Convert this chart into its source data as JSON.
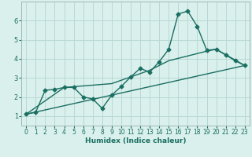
{
  "xlabel": "Humidex (Indice chaleur)",
  "bg_color": "#daf0ec",
  "line_color": "#1a6e62",
  "grid_color": "#b8d8d4",
  "xlim": [
    -0.5,
    23.5
  ],
  "ylim": [
    0.5,
    7.0
  ],
  "yticks": [
    1,
    2,
    3,
    4,
    5,
    6
  ],
  "xticks": [
    0,
    1,
    2,
    3,
    4,
    5,
    6,
    7,
    8,
    9,
    10,
    11,
    12,
    13,
    14,
    15,
    16,
    17,
    18,
    19,
    20,
    21,
    22,
    23
  ],
  "line1_x": [
    0,
    1,
    2,
    3,
    4,
    5,
    6,
    7,
    8,
    9,
    10,
    11,
    12,
    13,
    14,
    15,
    16,
    17,
    18,
    19,
    20,
    21,
    22,
    23
  ],
  "line1_y": [
    1.1,
    1.2,
    2.35,
    2.4,
    2.5,
    2.5,
    2.0,
    1.9,
    1.4,
    2.1,
    2.55,
    3.05,
    3.5,
    3.3,
    3.85,
    4.5,
    6.35,
    6.5,
    5.7,
    4.45,
    4.5,
    4.2,
    3.9,
    3.65
  ],
  "line2_x": [
    0,
    23
  ],
  "line2_y": [
    1.1,
    3.65
  ],
  "line3_x": [
    0,
    4,
    9,
    13,
    15,
    19,
    20,
    23
  ],
  "line3_y": [
    1.1,
    2.5,
    2.7,
    3.4,
    3.9,
    4.4,
    4.5,
    3.65
  ],
  "marker": "D",
  "marker_size": 2.5,
  "linewidth": 1.0,
  "tick_fontsize": 5.5,
  "xlabel_fontsize": 6.5
}
